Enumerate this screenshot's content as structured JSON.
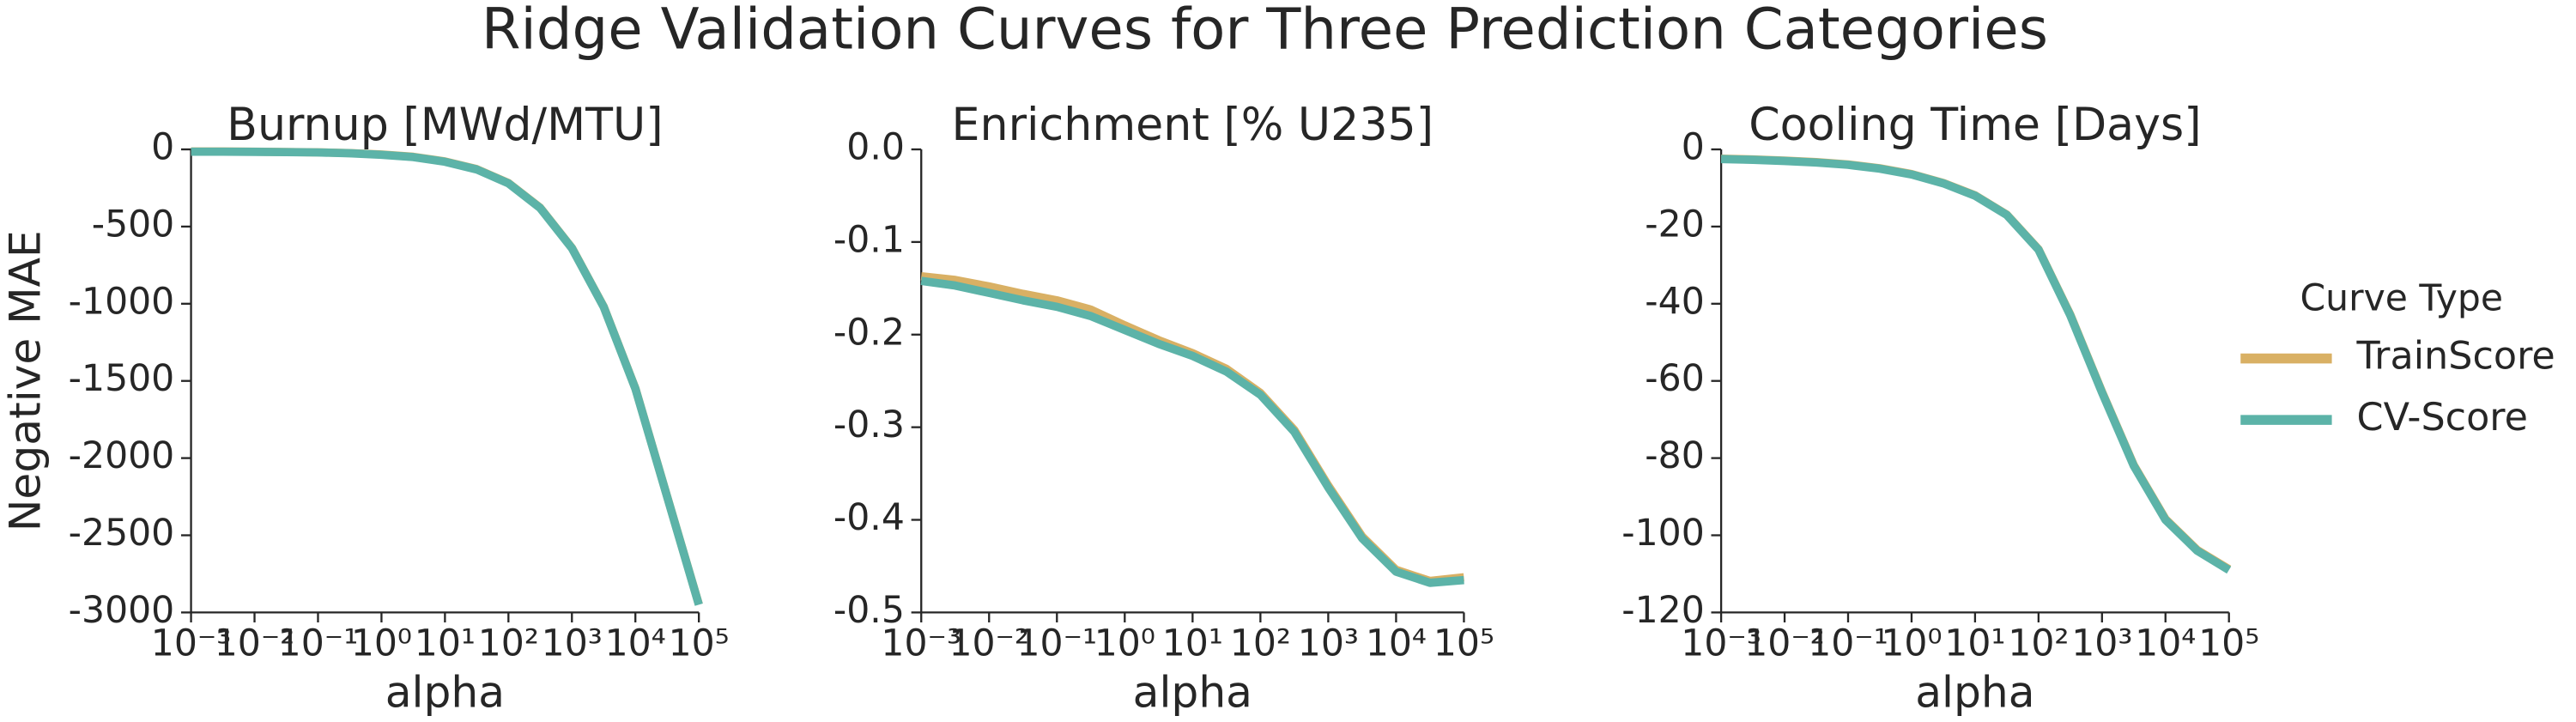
{
  "title": "Ridge Validation Curves for Three Prediction Categories",
  "legend_title": "Curve Type",
  "chart_data": [
    {
      "type": "line",
      "title": "Burnup [MWd/MTU]",
      "xlabel": "alpha",
      "ylabel": "Negative MAE",
      "xscale": "log",
      "x": [
        0.001,
        0.003162,
        0.01,
        0.03162,
        0.1,
        0.3162,
        1,
        3.162,
        10,
        31.62,
        100,
        316.2,
        1000,
        3162,
        10000,
        31620,
        100000
      ],
      "series": [
        {
          "name": "TrainScore",
          "color": "#d9b064",
          "values": [
            -14,
            -14,
            -15,
            -17,
            -19,
            -24,
            -33,
            -48,
            -78,
            -128,
            -218,
            -378,
            -638,
            -1018,
            -1548,
            -2248,
            -2948
          ]
        },
        {
          "name": "CV-Score",
          "color": "#5cb3a8",
          "values": [
            -15,
            -15,
            -16,
            -18,
            -20,
            -25,
            -35,
            -50,
            -80,
            -130,
            -220,
            -380,
            -640,
            -1020,
            -1550,
            -2250,
            -2950
          ]
        }
      ],
      "xlim": [
        0.001,
        100000
      ],
      "xticks": [
        {
          "value": 0.001,
          "label": "10⁻³"
        },
        {
          "value": 0.01,
          "label": "10⁻²"
        },
        {
          "value": 0.1,
          "label": "10⁻¹"
        },
        {
          "value": 1,
          "label": "10⁰"
        },
        {
          "value": 10,
          "label": "10¹"
        },
        {
          "value": 100,
          "label": "10²"
        },
        {
          "value": 1000,
          "label": "10³"
        },
        {
          "value": 10000,
          "label": "10⁴"
        },
        {
          "value": 100000,
          "label": "10⁵"
        }
      ],
      "ylim": [
        -3000,
        0
      ],
      "yticks": [
        0,
        -500,
        -1000,
        -1500,
        -2000,
        -2500,
        -3000
      ]
    },
    {
      "type": "line",
      "title": "Enrichment [% U235]",
      "xlabel": "alpha",
      "xscale": "log",
      "x": [
        0.001,
        0.003162,
        0.01,
        0.03162,
        0.1,
        0.3162,
        1,
        3.162,
        10,
        31.62,
        100,
        316.2,
        1000,
        3162,
        10000,
        31620,
        100000
      ],
      "series": [
        {
          "name": "TrainScore",
          "color": "#d9b064",
          "values": [
            -0.137,
            -0.141,
            -0.148,
            -0.156,
            -0.163,
            -0.173,
            -0.19,
            -0.206,
            -0.22,
            -0.237,
            -0.263,
            -0.303,
            -0.363,
            -0.418,
            -0.454,
            -0.466,
            -0.462
          ]
        },
        {
          "name": "CV-Score",
          "color": "#5cb3a8",
          "values": [
            -0.142,
            -0.147,
            -0.155,
            -0.163,
            -0.17,
            -0.18,
            -0.195,
            -0.21,
            -0.223,
            -0.24,
            -0.265,
            -0.305,
            -0.365,
            -0.42,
            -0.456,
            -0.468,
            -0.465
          ]
        }
      ],
      "xlim": [
        0.001,
        100000
      ],
      "xticks": [
        {
          "value": 0.001,
          "label": "10⁻³"
        },
        {
          "value": 0.01,
          "label": "10⁻²"
        },
        {
          "value": 0.1,
          "label": "10⁻¹"
        },
        {
          "value": 1,
          "label": "10⁰"
        },
        {
          "value": 10,
          "label": "10¹"
        },
        {
          "value": 100,
          "label": "10²"
        },
        {
          "value": 1000,
          "label": "10³"
        },
        {
          "value": 10000,
          "label": "10⁴"
        },
        {
          "value": 100000,
          "label": "10⁵"
        }
      ],
      "ylim": [
        -0.5,
        0
      ],
      "yticks": [
        {
          "value": 0,
          "label": "0.0"
        },
        {
          "value": -0.1,
          "label": "-0.1"
        },
        {
          "value": -0.2,
          "label": "-0.2"
        },
        {
          "value": -0.3,
          "label": "-0.3"
        },
        {
          "value": -0.4,
          "label": "-0.4"
        },
        {
          "value": -0.5,
          "label": "-0.5"
        }
      ]
    },
    {
      "type": "line",
      "title": "Cooling Time [Days]",
      "xlabel": "alpha",
      "xscale": "log",
      "x": [
        0.001,
        0.003162,
        0.01,
        0.03162,
        0.1,
        0.3162,
        1,
        3.162,
        10,
        31.62,
        100,
        316.2,
        1000,
        3162,
        10000,
        31620,
        100000
      ],
      "series": [
        {
          "name": "TrainScore",
          "color": "#d9b064",
          "values": [
            -2.4,
            -2.6,
            -2.9,
            -3.3,
            -3.9,
            -4.9,
            -6.4,
            -8.7,
            -11.9,
            -16.9,
            -25.9,
            -42.8,
            -62.8,
            -81.8,
            -95.8,
            -103.8,
            -108.8
          ]
        },
        {
          "name": "CV-Score",
          "color": "#5cb3a8",
          "values": [
            -2.5,
            -2.7,
            -3,
            -3.4,
            -4,
            -5,
            -6.5,
            -8.8,
            -12,
            -17,
            -26,
            -43,
            -63,
            -82,
            -96,
            -104,
            -109
          ]
        }
      ],
      "xlim": [
        0.001,
        100000
      ],
      "xticks": [
        {
          "value": 0.001,
          "label": "10⁻³"
        },
        {
          "value": 0.01,
          "label": "10⁻²"
        },
        {
          "value": 0.1,
          "label": "10⁻¹"
        },
        {
          "value": 1,
          "label": "10⁰"
        },
        {
          "value": 10,
          "label": "10¹"
        },
        {
          "value": 100,
          "label": "10²"
        },
        {
          "value": 1000,
          "label": "10³"
        },
        {
          "value": 10000,
          "label": "10⁴"
        },
        {
          "value": 100000,
          "label": "10⁵"
        }
      ],
      "ylim": [
        -120,
        0
      ],
      "yticks": [
        0,
        -20,
        -40,
        -60,
        -80,
        -100,
        -120
      ]
    }
  ]
}
